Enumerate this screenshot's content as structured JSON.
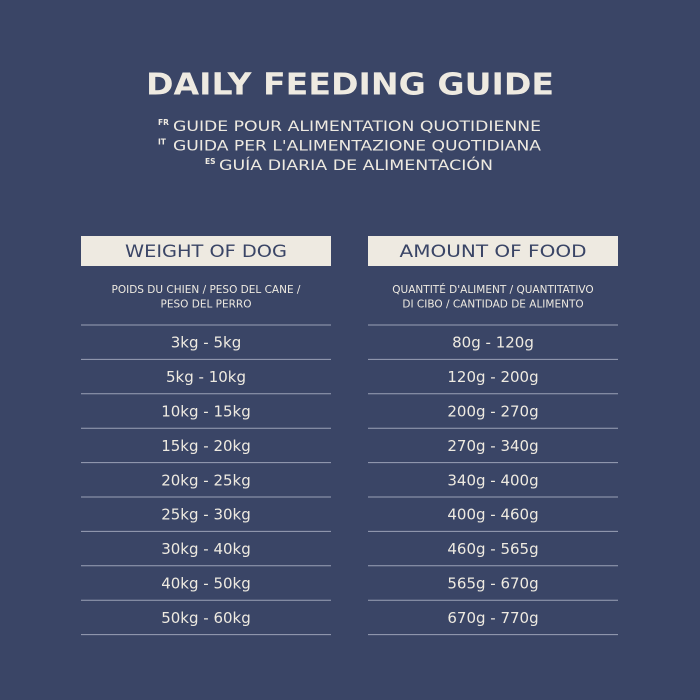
{
  "title": "DAILY FEEDING GUIDE",
  "translations": [
    {
      "lang": "FR",
      "text": "GUIDE POUR ALIMENTATION QUOTIDIENNE"
    },
    {
      "lang": "IT",
      "text": "GUIDA PER L'ALIMENTAZIONE QUOTIDIANA"
    },
    {
      "lang": "ES",
      "text": "GUÍA DIARIA DE ALIMENTACIÓN"
    }
  ],
  "table": {
    "columns": [
      {
        "header": "WEIGHT OF DOG",
        "subheader": [
          "POIDS DU CHIEN / PESO DEL CANE /",
          "PESO DEL PERRO"
        ]
      },
      {
        "header": "AMOUNT OF FOOD",
        "subheader": [
          "QUANTITÉ D'ALIMENT / QUANTITATIVO",
          "DI CIBO / CANTIDAD DE ALIMENTO"
        ]
      }
    ],
    "rows": [
      [
        "3kg - 5kg",
        "80g - 120g"
      ],
      [
        "5kg - 10kg",
        "120g - 200g"
      ],
      [
        "10kg - 15kg",
        "200g - 270g"
      ],
      [
        "15kg - 20kg",
        "270g - 340g"
      ],
      [
        "20kg - 25kg",
        "340g - 400g"
      ],
      [
        "25kg - 30kg",
        "400g - 460g"
      ],
      [
        "30kg - 40kg",
        "460g - 565g"
      ],
      [
        "40kg - 50kg",
        "565g - 670g"
      ],
      [
        "50kg - 60kg",
        "670g - 770g"
      ]
    ]
  }
}
